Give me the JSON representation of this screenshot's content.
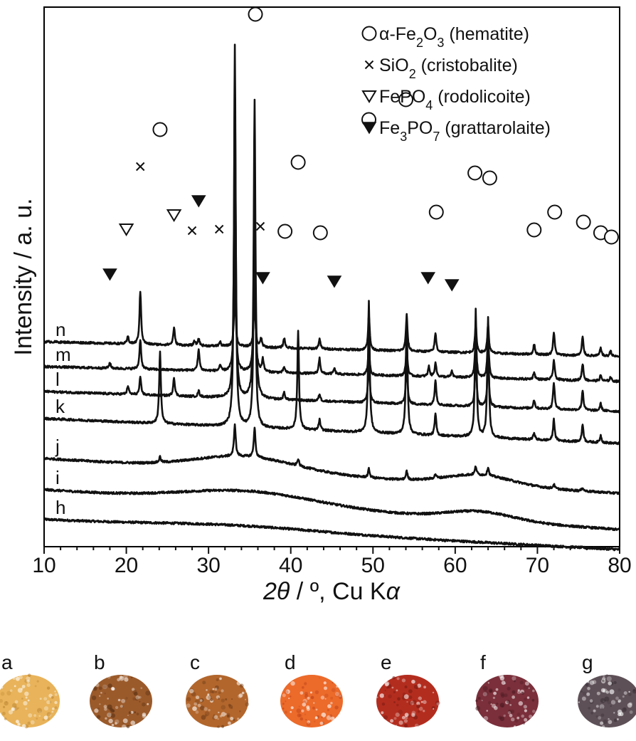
{
  "chart_data": {
    "type": "line",
    "xlabel_symbol": "2θ",
    "xlabel_rest": " / º, Cu K",
    "xlabel_alpha": "α",
    "ylabel": "Intensity / a. u.",
    "xlim": [
      10,
      80
    ],
    "xticks": [
      10,
      20,
      30,
      40,
      50,
      60,
      70,
      80
    ],
    "grid": false,
    "legend_position": "top-right",
    "legend": [
      {
        "marker": "circle",
        "pre": "α-Fe",
        "sub1": "2",
        "mid": "O",
        "sub2": "3",
        "post": " (hematite)"
      },
      {
        "marker": "cross",
        "pre": "SiO",
        "sub1": "2",
        "mid": "",
        "sub2": "",
        "post": " (cristobalite)"
      },
      {
        "marker": "triangle-open",
        "pre": "FePO",
        "sub1": "4",
        "mid": "",
        "sub2": "",
        "post": " (rodolicoite)"
      },
      {
        "marker": "triangle-filled",
        "pre": "Fe",
        "sub1": "3",
        "mid": "PO",
        "sub2": "7",
        "post": " (grattarolaite)"
      }
    ],
    "series": [
      {
        "label": "h",
        "baseline": 0,
        "slope": -0.6,
        "humps": [
          [
            33.5,
            6,
            10
          ]
        ],
        "peaks": []
      },
      {
        "label": "i",
        "baseline": 42,
        "slope": -0.8,
        "humps": [
          [
            35,
            18,
            8
          ],
          [
            63,
            12,
            4
          ]
        ],
        "peaks": []
      },
      {
        "label": "j",
        "baseline": 86,
        "slope": -0.7,
        "humps": [
          [
            34.5,
            20,
            6
          ],
          [
            63,
            14,
            4
          ]
        ],
        "peaks": [
          [
            24.1,
            8
          ],
          [
            33.2,
            45
          ],
          [
            35.6,
            42
          ],
          [
            40.9,
            10
          ],
          [
            49.5,
            12
          ],
          [
            54.1,
            12
          ],
          [
            57.6,
            6
          ],
          [
            62.5,
            12
          ],
          [
            64,
            12
          ],
          [
            72,
            6
          ],
          [
            75.5,
            5
          ]
        ]
      },
      {
        "label": "k",
        "baseline": 142,
        "slope": -0.5,
        "humps": [],
        "peaks": [
          [
            24.1,
            102
          ],
          [
            33.2,
            535
          ],
          [
            35.6,
            380
          ],
          [
            40.9,
            138
          ],
          [
            43.5,
            15
          ],
          [
            49.5,
            185
          ],
          [
            54.1,
            170
          ],
          [
            57.6,
            30
          ],
          [
            62.5,
            180
          ],
          [
            64,
            168
          ],
          [
            69.6,
            10
          ],
          [
            72,
            30
          ],
          [
            75.5,
            25
          ],
          [
            77.7,
            10
          ]
        ]
      },
      {
        "label": "l",
        "baseline": 180,
        "slope": -0.4,
        "humps": [],
        "peaks": [
          [
            20.2,
            12
          ],
          [
            21.7,
            24
          ],
          [
            25.8,
            26
          ],
          [
            28.8,
            8
          ],
          [
            33.2,
            440
          ],
          [
            35.6,
            420
          ],
          [
            39.2,
            10
          ],
          [
            43.5,
            10
          ],
          [
            49.5,
            60
          ],
          [
            54.1,
            60
          ],
          [
            57.6,
            36
          ],
          [
            62.5,
            70
          ],
          [
            64,
            70
          ],
          [
            69.6,
            12
          ],
          [
            72,
            38
          ],
          [
            75.5,
            28
          ],
          [
            77.7,
            10
          ]
        ]
      },
      {
        "label": "m",
        "baseline": 215,
        "slope": -0.3,
        "humps": [],
        "peaks": [
          [
            18,
            8
          ],
          [
            21.7,
            42
          ],
          [
            28.8,
            30
          ],
          [
            31.4,
            8
          ],
          [
            33.2,
            210
          ],
          [
            35.6,
            190
          ],
          [
            36.6,
            18
          ],
          [
            39.2,
            8
          ],
          [
            43.5,
            22
          ],
          [
            45.3,
            8
          ],
          [
            49.5,
            40
          ],
          [
            54.1,
            40
          ],
          [
            56.8,
            14
          ],
          [
            57.6,
            20
          ],
          [
            59.6,
            8
          ],
          [
            62.5,
            60
          ],
          [
            64,
            60
          ],
          [
            69.6,
            10
          ],
          [
            72,
            28
          ],
          [
            75.5,
            24
          ],
          [
            77.7,
            8
          ],
          [
            78.9,
            6
          ]
        ]
      },
      {
        "label": "n",
        "baseline": 250,
        "slope": -0.3,
        "humps": [],
        "peaks": [
          [
            20.2,
            10
          ],
          [
            21.7,
            74
          ],
          [
            25.8,
            24
          ],
          [
            28.3,
            6
          ],
          [
            28.8,
            10
          ],
          [
            31.4,
            6
          ],
          [
            33.2,
            80
          ],
          [
            35.6,
            70
          ],
          [
            36.4,
            12
          ],
          [
            39.2,
            14
          ],
          [
            43.5,
            14
          ],
          [
            49.5,
            50
          ],
          [
            54.1,
            50
          ],
          [
            57.6,
            26
          ],
          [
            62.5,
            40
          ],
          [
            64,
            40
          ],
          [
            69.6,
            14
          ],
          [
            72,
            32
          ],
          [
            75.5,
            26
          ],
          [
            77.7,
            12
          ],
          [
            78.9,
            8
          ]
        ]
      }
    ],
    "markers": [
      {
        "type": "circle",
        "x": 33.2,
        "y": 868
      },
      {
        "type": "circle",
        "x": 35.7,
        "y": 710
      },
      {
        "type": "circle",
        "x": 24.1,
        "y": 548
      },
      {
        "type": "circle",
        "x": 54.0,
        "y": 590
      },
      {
        "type": "circle",
        "x": 49.5,
        "y": 562
      },
      {
        "type": "circle",
        "x": 40.9,
        "y": 502
      },
      {
        "type": "circle",
        "x": 62.4,
        "y": 487
      },
      {
        "type": "circle",
        "x": 64.2,
        "y": 480
      },
      {
        "type": "circle",
        "x": 57.7,
        "y": 432
      },
      {
        "type": "circle",
        "x": 72.1,
        "y": 432
      },
      {
        "type": "circle",
        "x": 75.6,
        "y": 418
      },
      {
        "type": "circle",
        "x": 39.3,
        "y": 405
      },
      {
        "type": "circle",
        "x": 43.6,
        "y": 403
      },
      {
        "type": "circle",
        "x": 69.6,
        "y": 407
      },
      {
        "type": "circle",
        "x": 77.7,
        "y": 403
      },
      {
        "type": "circle",
        "x": 79.0,
        "y": 397
      },
      {
        "type": "cross",
        "x": 21.7,
        "y": 496
      },
      {
        "type": "cross",
        "x": 28.0,
        "y": 406
      },
      {
        "type": "cross",
        "x": 31.3,
        "y": 408
      },
      {
        "type": "cross",
        "x": 36.3,
        "y": 412
      },
      {
        "type": "triangle-open",
        "x": 20.0,
        "y": 408
      },
      {
        "type": "triangle-open",
        "x": 25.8,
        "y": 428
      },
      {
        "type": "triangle-filled",
        "x": 28.8,
        "y": 448
      },
      {
        "type": "triangle-filled",
        "x": 18.0,
        "y": 345
      },
      {
        "type": "triangle-filled",
        "x": 36.6,
        "y": 340
      },
      {
        "type": "triangle-filled",
        "x": 45.3,
        "y": 335
      },
      {
        "type": "triangle-filled",
        "x": 56.7,
        "y": 340
      },
      {
        "type": "triangle-filled",
        "x": 59.6,
        "y": 330
      }
    ],
    "samples": [
      {
        "label": "a",
        "color": "#e8b35a",
        "dark": "#b98230"
      },
      {
        "label": "b",
        "color": "#9b5a2a",
        "dark": "#5e3416"
      },
      {
        "label": "c",
        "color": "#b2662c",
        "dark": "#6f3c18"
      },
      {
        "label": "d",
        "color": "#ec6a2a",
        "dark": "#b8401a"
      },
      {
        "label": "e",
        "color": "#b32d1e",
        "dark": "#7a1a12"
      },
      {
        "label": "f",
        "color": "#7a2f3a",
        "dark": "#4a1a22"
      },
      {
        "label": "g",
        "color": "#5e5057",
        "dark": "#3c3238"
      }
    ]
  }
}
